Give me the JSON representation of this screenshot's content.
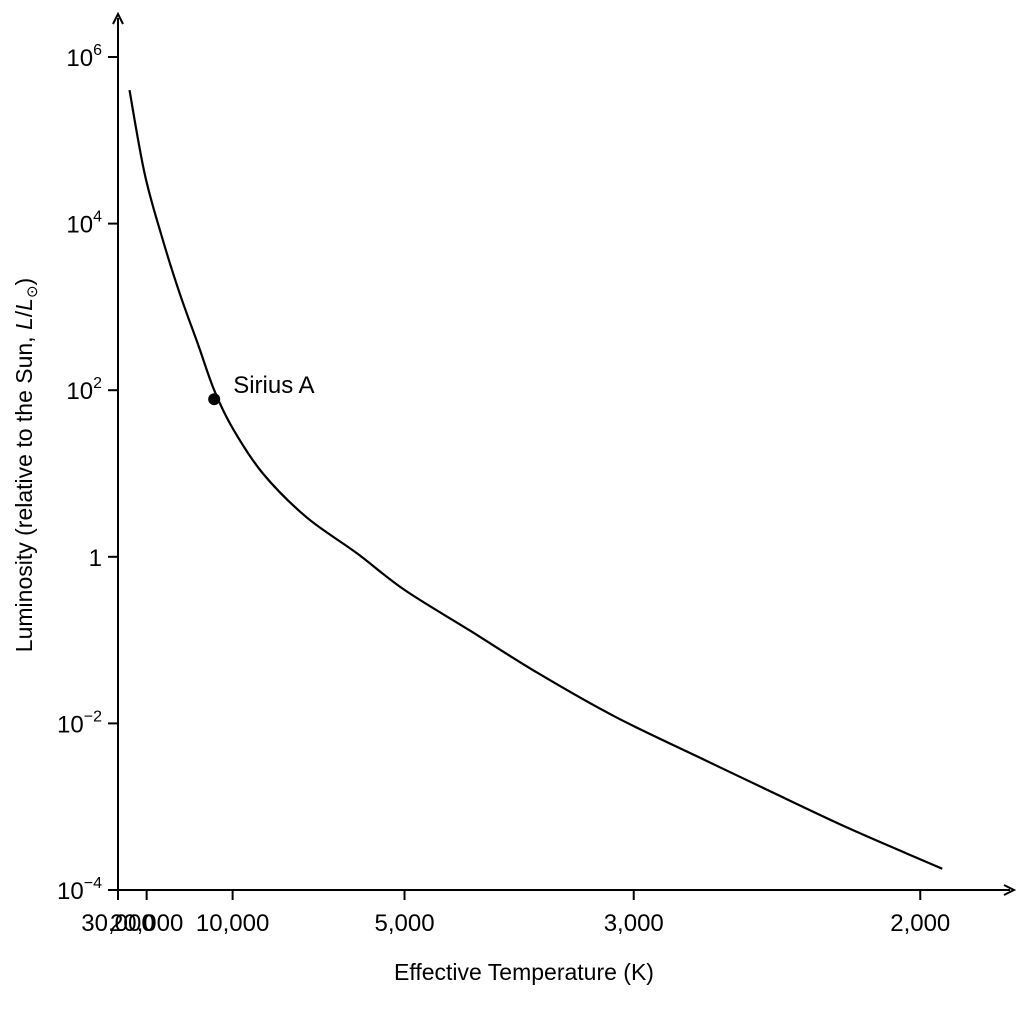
{
  "chart_data": {
    "type": "line",
    "title": "",
    "xlabel": "Effective Temperature (K)",
    "ylabel_parts": {
      "prefix": "Luminosity (relative to the Sun, ",
      "italic": "L",
      "slash": "/",
      "italic2": "L",
      "subscript": "⊙",
      "suffix": ")"
    },
    "x_scale": "reciprocal",
    "x_reversed": true,
    "y_scale": "log",
    "xlim": [
      30000,
      1840
    ],
    "ylim": [
      0.0001,
      1000000
    ],
    "grid": false,
    "x_ticks": [
      {
        "value": 30000,
        "label": "30,000"
      },
      {
        "value": 20000,
        "label": "20,000"
      },
      {
        "value": 10000,
        "label": "10,000"
      },
      {
        "value": 5000,
        "label": "5,000"
      },
      {
        "value": 3000,
        "label": "3,000"
      },
      {
        "value": 2000,
        "label": "2,000"
      }
    ],
    "y_ticks": [
      {
        "value": 0.0001,
        "base": "10",
        "exp": "−4"
      },
      {
        "value": 0.01,
        "base": "10",
        "exp": "−2"
      },
      {
        "value": 1,
        "base": "1",
        "exp": ""
      },
      {
        "value": 100,
        "base": "10",
        "exp": "2"
      },
      {
        "value": 10000,
        "base": "10",
        "exp": "4"
      },
      {
        "value": 1000000,
        "base": "10",
        "exp": "6"
      }
    ],
    "series": [
      {
        "x": [
          25000,
          20500,
          17000,
          14500,
          12500,
          11200,
          10000,
          8500,
          7000,
          5800,
          5000,
          4200,
          3600,
          3100,
          2700,
          2400,
          2200,
          2050,
          1950
        ],
        "y": [
          400000,
          40000,
          7000,
          1500,
          350,
          100,
          35,
          10,
          3,
          1.1,
          0.4,
          0.13,
          0.04,
          0.012,
          0.004,
          0.0014,
          0.0006,
          0.0003,
          0.00018
        ]
      }
    ],
    "annotations": [
      {
        "label": "Sirius A",
        "x": 11200,
        "y": 78
      }
    ],
    "colors": {
      "line": "#000000",
      "axis": "#000000",
      "marker": "#000000",
      "background": "#ffffff"
    }
  }
}
